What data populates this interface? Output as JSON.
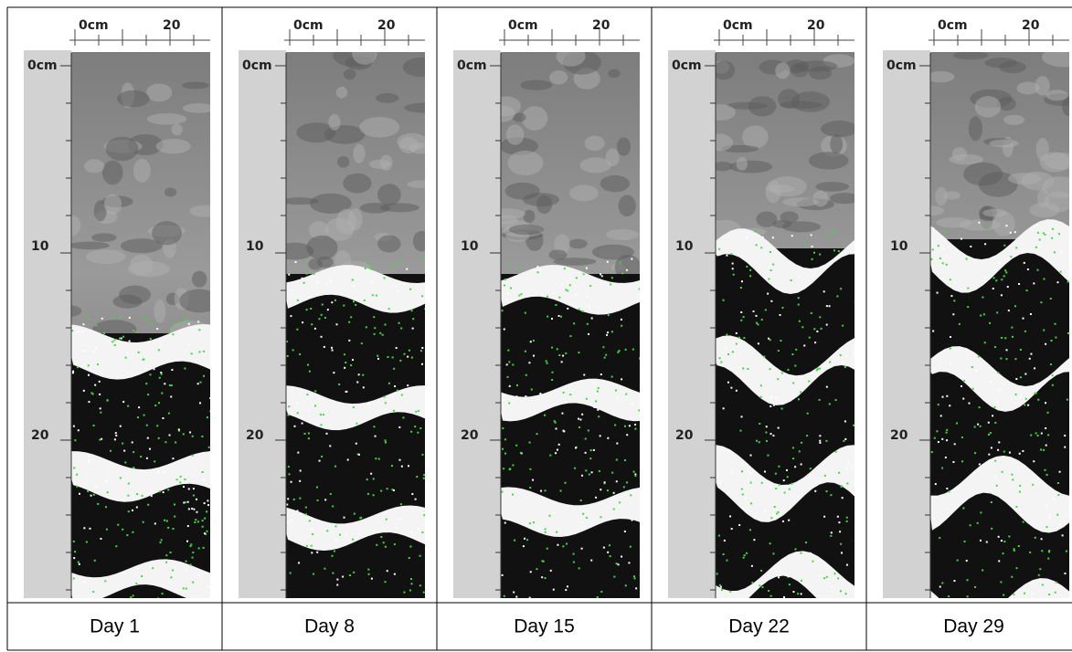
{
  "panels": [
    {
      "top_ticks": [
        "0cm",
        "20"
      ],
      "left_ticks": [
        "0cm",
        "10",
        "20"
      ],
      "caption": "Day 1"
    },
    {
      "top_ticks": [
        "0cm",
        "20"
      ],
      "left_ticks": [
        "0cm",
        "10",
        "20"
      ],
      "caption": "Day 8"
    },
    {
      "top_ticks": [
        "0cm",
        "20"
      ],
      "left_ticks": [
        "0cm",
        "10",
        "20"
      ],
      "caption": "Day 15"
    },
    {
      "top_ticks": [
        "0cm",
        "20"
      ],
      "left_ticks": [
        "0cm",
        "10",
        "20"
      ],
      "caption": "Day 22"
    },
    {
      "top_ticks": [
        "0cm",
        "20"
      ],
      "left_ticks": [
        "0cm",
        "10",
        "20"
      ],
      "caption": "Day 29"
    }
  ]
}
